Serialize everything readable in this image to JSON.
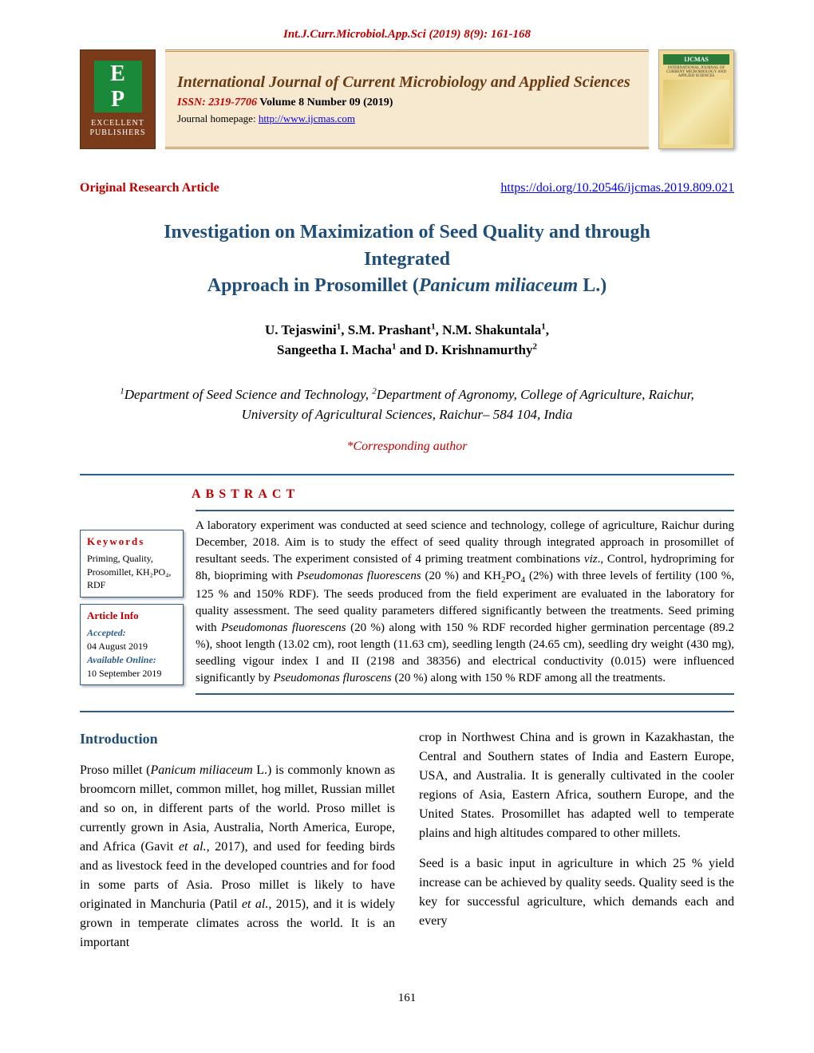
{
  "top_citation": "Int.J.Curr.Microbiol.App.Sci (2019) 8(9): 161-168",
  "publisher_logo": {
    "initials_top": "E",
    "initials_bottom": "P",
    "name_line1": "EXCELLENT",
    "name_line2": "PUBLISHERS"
  },
  "journal": {
    "name": "International Journal of Current Microbiology and Applied Sciences",
    "issn_label": "ISSN: 2319-7706",
    "volume_info": " Volume 8 Number 09 (2019)",
    "homepage_label": "Journal homepage: ",
    "homepage_url": "http://www.ijcmas.com"
  },
  "ijcmas_badge": {
    "title": "IJCMAS",
    "subtitle": "INTERNATIONAL JOURNAL OF CURRENT MICROBIOLOGY AND APPLIED SCIENCES"
  },
  "article_type": "Original Research Article",
  "doi": "https://doi.org/10.20546/ijcmas.2019.809.021",
  "title_line1": "Investigation on Maximization of Seed Quality and through Integrated",
  "title_line2_pre": "Approach in Prosomillet (",
  "title_species": "Panicum miliaceum",
  "title_line2_post": " L.)",
  "authors_line1_a": "U. Tejaswini",
  "authors_line1_b": ", S.M. Prashant",
  "authors_line1_c": ", N.M. Shakuntala",
  "authors_line2_a": "Sangeetha I. Macha",
  "authors_line2_b": " and D. Krishnamurthy",
  "affiliation_pre1": "Department of Seed Science and Technology, ",
  "affiliation_pre2": "Department of Agronomy, College of Agriculture, Raichur, University of Agricultural Sciences, Raichur– 584 104, India",
  "corresponding": "*Corresponding author",
  "abstract_label": "ABSTRACT",
  "keywords": {
    "header": "Keywords",
    "text": "Priming, Quality, Prosomillet, KH₂PO₄, RDF"
  },
  "article_info": {
    "header": "Article Info",
    "accepted_label": "Accepted:",
    "accepted_date": "04 August 2019",
    "available_label": "Available Online:",
    "available_date": "10 September 2019"
  },
  "abstract_p1": "A laboratory experiment was conducted at seed science and technology, college of agriculture, Raichur during December, 2018. Aim is to study the effect of seed quality through integrated approach in prosomillet of resultant seeds. The experiment consisted of 4 priming treatment combinations ",
  "abstract_viz": "viz",
  "abstract_p2": "., Control, hydropriming for 8h, biopriming with ",
  "abstract_pf": "Pseudomonas fluorescens",
  "abstract_p3": " (20 %) and KH",
  "abstract_p4": "PO",
  "abstract_p5": " (2%) with three levels of fertility (100 %, 125 % and 150% RDF). The seeds produced from the field experiment are evaluated in the laboratory for quality assessment. The seed quality parameters differed significantly between the treatments. Seed priming with ",
  "abstract_p6": " (20 %) along with 150 % RDF recorded higher germination percentage (89.2 %), shoot length (13.02 cm), root length (11.63 cm), seedling length (24.65 cm), seedling dry weight (430 mg), seedling vigour index I and II (2198 and 38356) and electrical conductivity (0.015) were influenced significantly by ",
  "abstract_pf2": "Pseudomonas fluroscens",
  "abstract_p7": " (20 %) along with 150 % RDF among all the treatments.",
  "intro_header": "Introduction",
  "intro_p1_pre": "Proso millet (",
  "intro_species": "Panicum miliaceum",
  "intro_p1_mid": " L.) is commonly known as broomcorn millet, common millet, hog millet, Russian millet and so on, in different parts of the world. Proso millet is currently grown in Asia, Australia, North America, Europe, and Africa (Gavit ",
  "intro_etal1": "et al.,",
  "intro_p1_mid2": " 2017), and used for feeding birds and as livestock feed in the developed countries and for food in some parts of Asia. Proso millet is likely to have originated in Manchuria (Patil ",
  "intro_etal2": "et al.,",
  "intro_p1_end": " 2015), and it is widely grown in temperate climates across the world. It is an important",
  "col2_p1": "crop in Northwest China and is grown in Kazakhastan, the Central and Southern states of India and Eastern Europe, USA, and Australia. It is generally cultivated in the cooler regions of Asia, Eastern Africa, southern Europe, and the United States. Prosomillet has adapted well to temperate plains and high altitudes compared to other millets.",
  "col2_p2": "Seed is a basic input in agriculture in which 25 % yield increase can be achieved by quality seeds. Quality seed is the key for successful agriculture, which demands each and every",
  "page_number": "161",
  "colors": {
    "red": "#c00000",
    "blue_heading": "#1f4e79",
    "blue_rule": "#2e5c8a",
    "cream": "#f7e8d0",
    "brown": "#7a3b1a",
    "green": "#1a8a3a",
    "link": "#0000ee"
  }
}
